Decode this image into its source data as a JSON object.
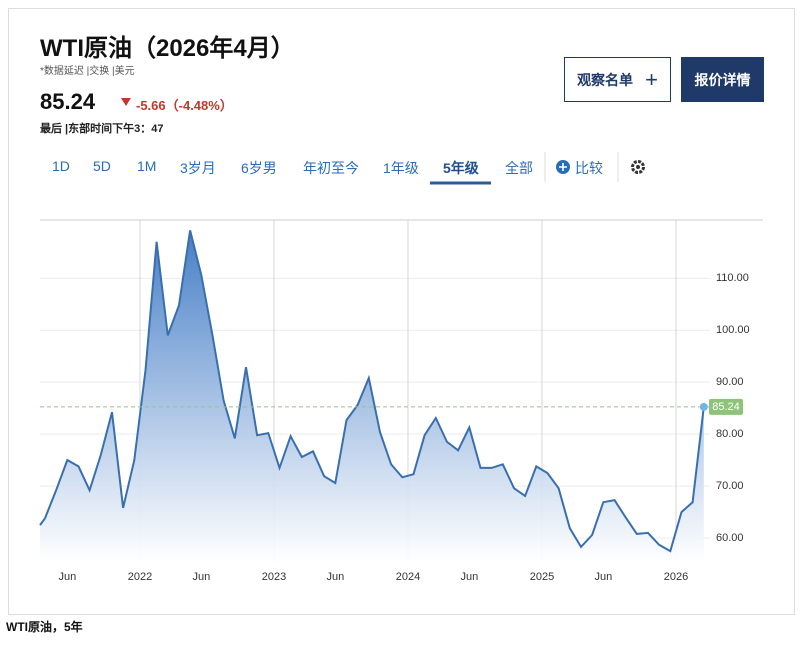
{
  "header": {
    "title": "WTI原油（2026年4月）",
    "subtitle": "*数据延迟 |交换 |美元",
    "price": "85.24",
    "change": "-5.66（-4.48%）",
    "last_update": "最后 |东部时间下午3：47"
  },
  "buttons": {
    "watchlist": "观察名单",
    "quote": "报价详情"
  },
  "tabs": [
    "1D",
    "5D",
    "1M",
    "3岁月",
    "6岁男",
    "年初至今",
    "1年级",
    "5年级",
    "全部"
  ],
  "compare": "比较",
  "caption": "WTI原油，5年",
  "chart_data": {
    "type": "line",
    "color": "#3a6fae",
    "x": [
      2021.254,
      2021.291,
      2021.374,
      2021.458,
      2021.541,
      2021.624,
      2021.708,
      2021.791,
      2021.874,
      2021.958,
      2022.041,
      2022.124,
      2022.208,
      2022.291,
      2022.374,
      2022.458,
      2022.541,
      2022.624,
      2022.708,
      2022.791,
      2022.874,
      2022.958,
      2023.041,
      2023.124,
      2023.208,
      2023.291,
      2023.374,
      2023.458,
      2023.541,
      2023.624,
      2023.708,
      2023.791,
      2023.874,
      2023.958,
      2024.041,
      2024.124,
      2024.208,
      2024.291,
      2024.374,
      2024.458,
      2024.541,
      2024.624,
      2024.708,
      2024.791,
      2024.874,
      2024.958,
      2025.041,
      2025.124,
      2025.208,
      2025.291,
      2025.374,
      2025.458,
      2025.541,
      2025.624,
      2025.708,
      2025.791,
      2025.874,
      2025.958,
      2026.041,
      2026.124,
      2026.208
    ],
    "values": [
      62.5,
      63.8,
      69.2,
      75,
      73.8,
      69.2,
      76,
      84.2,
      65.8,
      75,
      92.3,
      117,
      99,
      104.8,
      119.2,
      110.6,
      99,
      86.5,
      79.2,
      92.9,
      79.8,
      80.2,
      73.5,
      79.6,
      75.6,
      76.7,
      71.9,
      70.6,
      82.7,
      85.6,
      90.8,
      80.4,
      74.2,
      71.7,
      72.3,
      79.8,
      83.1,
      78.5,
      76.9,
      81.3,
      73.5,
      73.5,
      74.2,
      69.6,
      68.1,
      73.8,
      72.5,
      69.6,
      61.9,
      58.3,
      60.6,
      66.9,
      67.3,
      64,
      60.8,
      61,
      58.7,
      57.5,
      65,
      66.9,
      85.24
    ],
    "xlim": [
      2021.254,
      2026.254
    ],
    "ylim": [
      55.4,
      121.2
    ],
    "xticks": [
      {
        "value": 2021.458,
        "label": "Jun"
      },
      2022,
      {
        "value": 2022.458,
        "label": "Jun"
      },
      2023,
      {
        "value": 2023.458,
        "label": "Jun"
      },
      2024,
      {
        "value": 2024.458,
        "label": "Jun"
      },
      2025,
      {
        "value": 2025.458,
        "label": "Jun"
      },
      2026
    ],
    "yticks": [
      {
        "value": 60,
        "label": "60.00"
      },
      {
        "value": 70,
        "label": "70.00"
      },
      {
        "value": 80,
        "label": "80.00"
      },
      {
        "value": 90,
        "label": "90.00"
      },
      {
        "value": 100,
        "label": "100.00"
      },
      {
        "value": 110,
        "label": "110.00"
      }
    ],
    "grid": true
  }
}
